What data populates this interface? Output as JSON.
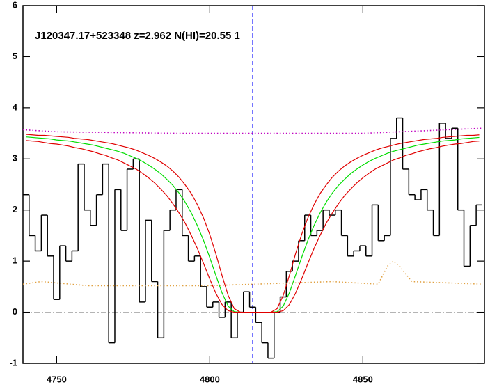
{
  "chart_data": {
    "type": "line",
    "annotation": "J120347.17+523348 z=2.962 N(HI)=20.55 1",
    "x": [
      4740,
      4742,
      4744,
      4746,
      4748,
      4750,
      4752,
      4754,
      4756,
      4758,
      4760,
      4762,
      4764,
      4766,
      4768,
      4770,
      4772,
      4774,
      4776,
      4778,
      4780,
      4782,
      4784,
      4786,
      4788,
      4790,
      4792,
      4794,
      4796,
      4798,
      4800,
      4802,
      4804,
      4806,
      4808,
      4810,
      4812,
      4814,
      4816,
      4818,
      4820,
      4822,
      4824,
      4826,
      4828,
      4830,
      4832,
      4834,
      4836,
      4838,
      4840,
      4842,
      4844,
      4846,
      4848,
      4850,
      4852,
      4854,
      4856,
      4858,
      4860,
      4862,
      4864,
      4866,
      4868,
      4870,
      4872,
      4874,
      4876,
      4878,
      4880,
      4882,
      4884,
      4886,
      4888
    ],
    "series": [
      {
        "style": "step",
        "color": "#000000",
        "values": [
          2.3,
          1.5,
          1.2,
          1.9,
          1.1,
          0.25,
          1.3,
          1.0,
          1.2,
          2.9,
          2.0,
          1.7,
          2.3,
          2.9,
          -0.6,
          2.4,
          1.6,
          2.8,
          3.0,
          0.2,
          1.8,
          0.6,
          -0.5,
          1.6,
          2.0,
          2.4,
          1.5,
          1.0,
          1.1,
          0.5,
          0.1,
          0.2,
          -0.1,
          0.2,
          -0.5,
          0.0,
          0.4,
          0.1,
          -0.2,
          -0.6,
          -0.9,
          0.0,
          0.3,
          0.8,
          1.0,
          1.4,
          1.9,
          1.5,
          1.6,
          2.0,
          1.9,
          2.0,
          1.5,
          1.1,
          1.2,
          1.3,
          1.1,
          2.1,
          1.4,
          1.5,
          3.4,
          3.8,
          2.8,
          2.3,
          2.2,
          2.4,
          2.0,
          1.5,
          3.7,
          3.4,
          3.6,
          2.0,
          0.9,
          1.7,
          2.1
        ]
      },
      {
        "style": "solid",
        "color": "#00dd00",
        "values": [
          3.43,
          3.42,
          3.41,
          3.4,
          3.39,
          3.37,
          3.36,
          3.35,
          3.33,
          3.31,
          3.29,
          3.27,
          3.24,
          3.21,
          3.18,
          3.15,
          3.11,
          3.06,
          3.01,
          2.95,
          2.88,
          2.8,
          2.71,
          2.6,
          2.48,
          2.33,
          2.15,
          1.94,
          1.69,
          1.4,
          1.07,
          0.72,
          0.38,
          0.12,
          0.01,
          0,
          0,
          0,
          0,
          0,
          0,
          0.01,
          0.12,
          0.38,
          0.72,
          1.07,
          1.4,
          1.69,
          1.94,
          2.15,
          2.33,
          2.48,
          2.6,
          2.71,
          2.8,
          2.88,
          2.95,
          3.01,
          3.06,
          3.11,
          3.15,
          3.18,
          3.21,
          3.24,
          3.27,
          3.29,
          3.31,
          3.33,
          3.35,
          3.36,
          3.37,
          3.39,
          3.4,
          3.41,
          3.42
        ]
      },
      {
        "style": "solid",
        "color": "#e00000",
        "values": [
          3.48,
          3.47,
          3.46,
          3.46,
          3.45,
          3.44,
          3.43,
          3.42,
          3.4,
          3.39,
          3.38,
          3.36,
          3.34,
          3.32,
          3.3,
          3.27,
          3.24,
          3.21,
          3.17,
          3.12,
          3.07,
          3.01,
          2.94,
          2.86,
          2.76,
          2.64,
          2.49,
          2.32,
          2.1,
          1.84,
          1.52,
          1.14,
          0.72,
          0.33,
          0.07,
          0,
          0,
          0,
          0,
          0,
          0,
          0.07,
          0.33,
          0.72,
          1.14,
          1.52,
          1.84,
          2.1,
          2.32,
          2.49,
          2.64,
          2.76,
          2.86,
          2.94,
          3.01,
          3.07,
          3.12,
          3.17,
          3.21,
          3.24,
          3.27,
          3.3,
          3.32,
          3.34,
          3.36,
          3.38,
          3.39,
          3.4,
          3.42,
          3.43,
          3.44,
          3.45,
          3.46,
          3.46,
          3.47
        ]
      },
      {
        "style": "solid",
        "color": "#e00000",
        "values": [
          3.36,
          3.35,
          3.34,
          3.32,
          3.3,
          3.29,
          3.27,
          3.25,
          3.22,
          3.2,
          3.17,
          3.14,
          3.1,
          3.07,
          3.02,
          2.98,
          2.92,
          2.86,
          2.8,
          2.72,
          2.63,
          2.53,
          2.41,
          2.28,
          2.12,
          1.94,
          1.74,
          1.5,
          1.24,
          0.95,
          0.65,
          0.37,
          0.15,
          0.03,
          0,
          0,
          0,
          0,
          0,
          0,
          0,
          0,
          0.03,
          0.15,
          0.37,
          0.65,
          0.95,
          1.24,
          1.5,
          1.74,
          1.94,
          2.12,
          2.28,
          2.41,
          2.53,
          2.63,
          2.72,
          2.8,
          2.86,
          2.92,
          2.98,
          3.02,
          3.07,
          3.1,
          3.14,
          3.17,
          3.2,
          3.22,
          3.25,
          3.27,
          3.29,
          3.3,
          3.32,
          3.34,
          3.35
        ]
      },
      {
        "style": "dotted",
        "color": "#c000c0",
        "x": [
          4739,
          4750,
          4790,
          4850,
          4870,
          4889
        ],
        "values": [
          3.57,
          3.53,
          3.5,
          3.5,
          3.55,
          3.6
        ]
      },
      {
        "style": "dotted",
        "color": "#e0a040",
        "x": [
          4739,
          4745,
          4760,
          4800,
          4840,
          4855,
          4858,
          4860,
          4862,
          4866,
          4889
        ],
        "values": [
          0.55,
          0.6,
          0.52,
          0.52,
          0.6,
          0.55,
          0.9,
          1.0,
          0.9,
          0.6,
          0.55
        ]
      }
    ],
    "hline": 0,
    "hline_color": "#aaaaaa",
    "vline": 4814,
    "vline_color": "#0000ff",
    "xlim": [
      4739,
      4889.7
    ],
    "xticks": [
      4750,
      4800,
      4850
    ],
    "ylim": [
      -1,
      6
    ],
    "yticks": [
      -1,
      0,
      1,
      2,
      3,
      4,
      5,
      6
    ]
  }
}
